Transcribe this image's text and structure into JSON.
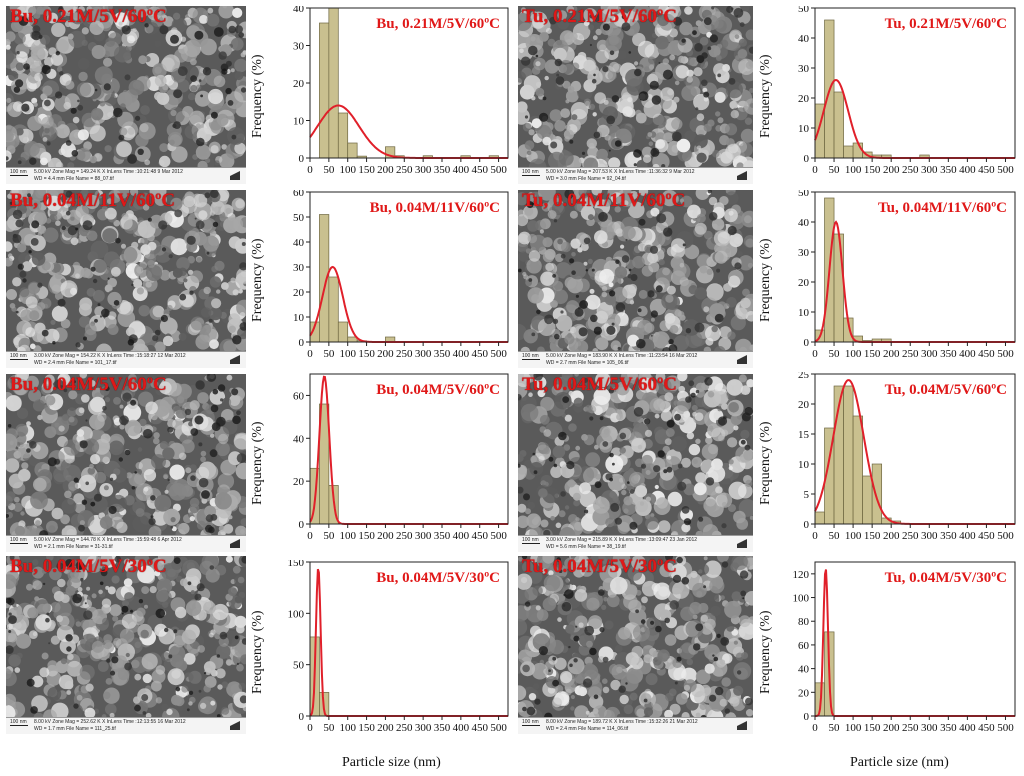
{
  "x_axis_label": "Particle size (nm)",
  "y_axis_label": "Frequency (%)",
  "colors": {
    "bar_fill": "#c9c08f",
    "bar_stroke": "#6d6640",
    "fit_line": "#e0202a",
    "label_red": "#e01818"
  },
  "sem_images": [
    {
      "label": "Bu, 0.21M/5V/60ºC",
      "scale": "100 nm",
      "line1": "5.00 kV   Zone Mag = 149.24 K X        InLens        Time :10:21:48      9 Mar 2012",
      "line2": "WD = 4.4 mm                          File Name = 88_07.tif"
    },
    {
      "label": "Tu, 0.21M/5V/60ºC",
      "scale": "100 nm",
      "line1": "5.00 kV   Zone Mag = 207.53 K X        InLens        Time :11:36:32      9 Mar 2012",
      "line2": "WD = 3.0 mm                          File Name = 92_04.tif"
    },
    {
      "label": "Bu, 0.04M/11V/60ºC",
      "scale": "100 nm",
      "line1": "3.00 kV   Zone Mag = 154.22 K X        InLens        Time :15:18:27      12 Mar 2012",
      "line2": "WD = 2.4 mm                          File Name = 101_17.tif"
    },
    {
      "label": "Tu, 0.04M/11V/60ºC",
      "scale": "100 nm",
      "line1": "5.00 kV   Zone Mag = 183.90 K X        InLens        Time :11:23:54      16 Mar 2012",
      "line2": "WD = 2.7 mm                          File Name = 105_06.tif"
    },
    {
      "label": "Bu, 0.04M/5V/60ºC",
      "scale": "100 nm",
      "line1": "5.00 kV   Zone Mag = 144.78 K X        InLens        Time :15:59:48      6 Apr 2012",
      "line2": "WD = 2.1 mm                          File Name = 31-31.tif"
    },
    {
      "label": "Tu, 0.04M/5V/60ºC",
      "scale": "100 nm",
      "line1": "3.00 kV   Zone Mag = 215.89 K X        InLens        Time :13:09:47      23 Jan 2012",
      "line2": "WD = 5.6 mm                          File Name = 38_19.tif"
    },
    {
      "label": "Bu, 0.04M/5V/30ºC",
      "scale": "100 nm",
      "line1": "8.00 kV   Zone Mag = 252.62 K X        InLens        Time :12:13:55      16 Mar 2012",
      "line2": "WD = 1.7 mm                          File Name = 111_25.tif"
    },
    {
      "label": "Tu, 0.04M/5V/30ºC",
      "scale": "100 nm",
      "line1": "8.00 kV   Zone Mag = 189.72 K X        InLens        Time :15:32:26      21 Mar 2012",
      "line2": "WD = 2.4 mm                          File Name = 114_06.tif"
    }
  ],
  "chart_data": [
    {
      "type": "bar",
      "title": "Bu, 0.21M/5V/60ºC",
      "xlim": [
        0,
        525
      ],
      "ylim": [
        0,
        40
      ],
      "xticks": [
        0,
        50,
        100,
        150,
        200,
        250,
        300,
        350,
        400,
        450,
        500
      ],
      "yticks": [
        0,
        10,
        20,
        30,
        40
      ],
      "bin_width": 25,
      "bins": [
        {
          "x": 0,
          "y": 0
        },
        {
          "x": 25,
          "y": 36
        },
        {
          "x": 50,
          "y": 40
        },
        {
          "x": 75,
          "y": 12
        },
        {
          "x": 100,
          "y": 4
        },
        {
          "x": 125,
          "y": 0.5
        },
        {
          "x": 200,
          "y": 3
        },
        {
          "x": 225,
          "y": 0.6
        },
        {
          "x": 300,
          "y": 0.6
        },
        {
          "x": 400,
          "y": 0.6
        },
        {
          "x": 475,
          "y": 0.6
        }
      ],
      "fit": {
        "mu": 75,
        "sigma": 55,
        "peak": 14
      }
    },
    {
      "type": "bar",
      "title": "Tu, 0.21M/5V/60ºC",
      "xlim": [
        0,
        525
      ],
      "ylim": [
        0,
        50
      ],
      "xticks": [
        0,
        50,
        100,
        150,
        200,
        250,
        300,
        350,
        400,
        450,
        500
      ],
      "yticks": [
        0,
        10,
        20,
        30,
        40,
        50
      ],
      "bin_width": 25,
      "bins": [
        {
          "x": 0,
          "y": 18
        },
        {
          "x": 25,
          "y": 46
        },
        {
          "x": 50,
          "y": 22
        },
        {
          "x": 75,
          "y": 4
        },
        {
          "x": 100,
          "y": 5
        },
        {
          "x": 125,
          "y": 2
        },
        {
          "x": 150,
          "y": 1
        },
        {
          "x": 175,
          "y": 1
        },
        {
          "x": 275,
          "y": 1
        }
      ],
      "fit": {
        "mu": 55,
        "sigma": 32,
        "peak": 26
      }
    },
    {
      "type": "bar",
      "title": "Bu, 0.04M/11V/60ºC",
      "xlim": [
        0,
        525
      ],
      "ylim": [
        0,
        60
      ],
      "xticks": [
        0,
        50,
        100,
        150,
        200,
        250,
        300,
        350,
        400,
        450,
        500
      ],
      "yticks": [
        0,
        10,
        20,
        30,
        40,
        50,
        60
      ],
      "bin_width": 25,
      "bins": [
        {
          "x": 0,
          "y": 8
        },
        {
          "x": 25,
          "y": 51
        },
        {
          "x": 50,
          "y": 26
        },
        {
          "x": 75,
          "y": 8
        },
        {
          "x": 100,
          "y": 2
        },
        {
          "x": 125,
          "y": 0.5
        },
        {
          "x": 200,
          "y": 2
        }
      ],
      "fit": {
        "mu": 60,
        "sigma": 27,
        "peak": 30
      }
    },
    {
      "type": "bar",
      "title": "Tu, 0.04M/11V/60ºC",
      "xlim": [
        0,
        525
      ],
      "ylim": [
        0,
        50
      ],
      "xticks": [
        0,
        50,
        100,
        150,
        200,
        250,
        300,
        350,
        400,
        450,
        500
      ],
      "yticks": [
        0,
        10,
        20,
        30,
        40,
        50
      ],
      "bin_width": 25,
      "bins": [
        {
          "x": 0,
          "y": 4
        },
        {
          "x": 25,
          "y": 48
        },
        {
          "x": 50,
          "y": 36
        },
        {
          "x": 75,
          "y": 8
        },
        {
          "x": 100,
          "y": 2
        },
        {
          "x": 125,
          "y": 0.5
        },
        {
          "x": 150,
          "y": 1
        },
        {
          "x": 175,
          "y": 1
        }
      ],
      "fit": {
        "mu": 55,
        "sigma": 17,
        "peak": 40
      }
    },
    {
      "type": "bar",
      "title": "Bu, 0.04M/5V/60ºC",
      "xlim": [
        0,
        525
      ],
      "ylim": [
        0,
        70
      ],
      "xticks": [
        0,
        50,
        100,
        150,
        200,
        250,
        300,
        350,
        400,
        450,
        500
      ],
      "yticks": [
        0,
        20,
        40,
        60
      ],
      "bin_width": 25,
      "bins": [
        {
          "x": 0,
          "y": 26
        },
        {
          "x": 25,
          "y": 56
        },
        {
          "x": 50,
          "y": 18
        }
      ],
      "fit": {
        "mu": 38,
        "sigma": 13,
        "peak": 69
      }
    },
    {
      "type": "bar",
      "title": "Tu, 0.04M/5V/60ºC",
      "xlim": [
        0,
        525
      ],
      "ylim": [
        0,
        25
      ],
      "xticks": [
        0,
        50,
        100,
        150,
        200,
        250,
        300,
        350,
        400,
        450,
        500
      ],
      "yticks": [
        0,
        5,
        10,
        15,
        20,
        25
      ],
      "bin_width": 25,
      "bins": [
        {
          "x": 0,
          "y": 2
        },
        {
          "x": 25,
          "y": 16
        },
        {
          "x": 50,
          "y": 23
        },
        {
          "x": 75,
          "y": 23
        },
        {
          "x": 100,
          "y": 18
        },
        {
          "x": 125,
          "y": 8
        },
        {
          "x": 150,
          "y": 10
        },
        {
          "x": 175,
          "y": 1
        },
        {
          "x": 200,
          "y": 0.5
        }
      ],
      "fit": {
        "mu": 88,
        "sigma": 40,
        "peak": 24
      }
    },
    {
      "type": "bar",
      "title": "Bu, 0.04M/5V/30ºC",
      "xlim": [
        0,
        525
      ],
      "ylim": [
        0,
        150
      ],
      "xticks": [
        0,
        50,
        100,
        150,
        200,
        250,
        300,
        350,
        400,
        450,
        500
      ],
      "yticks": [
        0,
        50,
        100,
        150
      ],
      "bin_width": 25,
      "bins": [
        {
          "x": 0,
          "y": 77
        },
        {
          "x": 25,
          "y": 23
        }
      ],
      "fit": {
        "mu": 22,
        "sigma": 6,
        "peak": 145
      }
    },
    {
      "type": "bar",
      "title": "Tu, 0.04M/5V/30ºC",
      "xlim": [
        0,
        525
      ],
      "ylim": [
        0,
        130
      ],
      "xticks": [
        0,
        50,
        100,
        150,
        200,
        250,
        300,
        350,
        400,
        450,
        500
      ],
      "yticks": [
        0,
        20,
        40,
        60,
        80,
        100,
        120
      ],
      "bin_width": 25,
      "bins": [
        {
          "x": 0,
          "y": 28
        },
        {
          "x": 25,
          "y": 71
        }
      ],
      "fit": {
        "mu": 28,
        "sigma": 6,
        "peak": 125
      }
    }
  ]
}
